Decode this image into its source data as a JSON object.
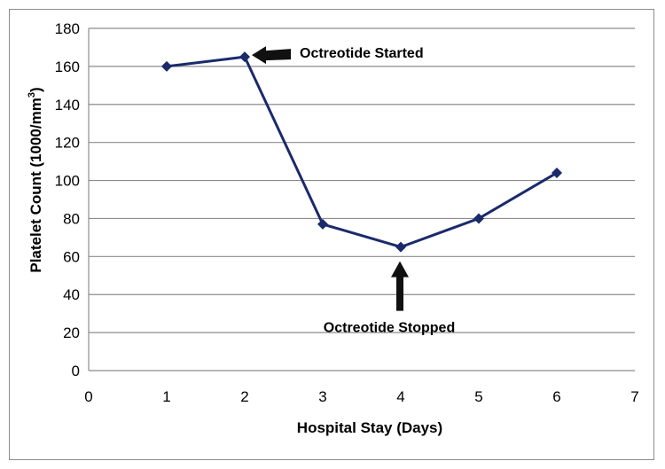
{
  "chart_data": {
    "type": "line",
    "xlabel": "Hospital Stay (Days)",
    "ylabel_main": "Platelet Count (1000/mm",
    "ylabel_sup": "3",
    "ylabel_end": ")",
    "xlim": [
      0,
      7
    ],
    "ylim": [
      0,
      180
    ],
    "x_ticks": [
      0,
      1,
      2,
      3,
      4,
      5,
      6,
      7
    ],
    "y_ticks": [
      0,
      20,
      40,
      60,
      80,
      100,
      120,
      140,
      160,
      180
    ],
    "grid": "horizontal",
    "series": [
      {
        "x": [
          1,
          2,
          3,
          4,
          5,
          6
        ],
        "y": [
          160,
          165,
          77,
          65,
          80,
          104
        ],
        "color": "#1a2a6b",
        "marker": "diamond"
      }
    ],
    "annotations": [
      {
        "text": "Octreotide Started",
        "x": 2,
        "y": 165,
        "arrow": "left"
      },
      {
        "text": "Octreotide Stopped",
        "x": 4,
        "y": 65,
        "arrow": "up"
      }
    ]
  },
  "colors": {
    "line": "#1a2a6b",
    "grid": "#8c8c8c",
    "axis": "#8c8c8c",
    "arrow": "#111111"
  }
}
